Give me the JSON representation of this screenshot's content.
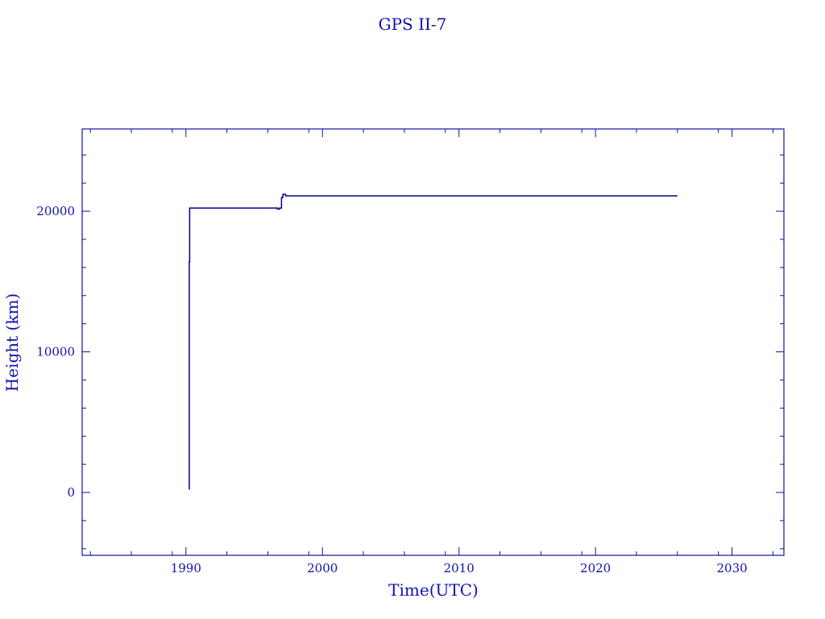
{
  "chart_data": {
    "type": "line",
    "title": "GPS II-7",
    "xlabel": "Time(UTC)",
    "ylabel": "Height (km)",
    "xlim": [
      1982.4,
      2033.8
    ],
    "ylim": [
      -4470,
      25850
    ],
    "xticks": [
      1990,
      2000,
      2010,
      2020,
      2030
    ],
    "xtick_labels": [
      "1990",
      "2000",
      "2010",
      "2020",
      "2030"
    ],
    "yticks": [
      0,
      10000,
      20000
    ],
    "ytick_labels": [
      "0",
      "10000",
      "20000"
    ],
    "grid": false,
    "color": "#00008b",
    "series": [
      {
        "x": [
          1990.24,
          1990.24,
          1990.27,
          1990.27,
          1996.7,
          1996.7,
          1996.85,
          1996.85,
          1997.0,
          1997.0,
          1997.1,
          1997.1,
          1997.3,
          1997.3,
          2026.0
        ],
        "y": [
          200,
          16390,
          16390,
          20230,
          20230,
          20150,
          20150,
          20230,
          20230,
          20970,
          20970,
          21200,
          21200,
          21090,
          21090
        ]
      }
    ]
  }
}
